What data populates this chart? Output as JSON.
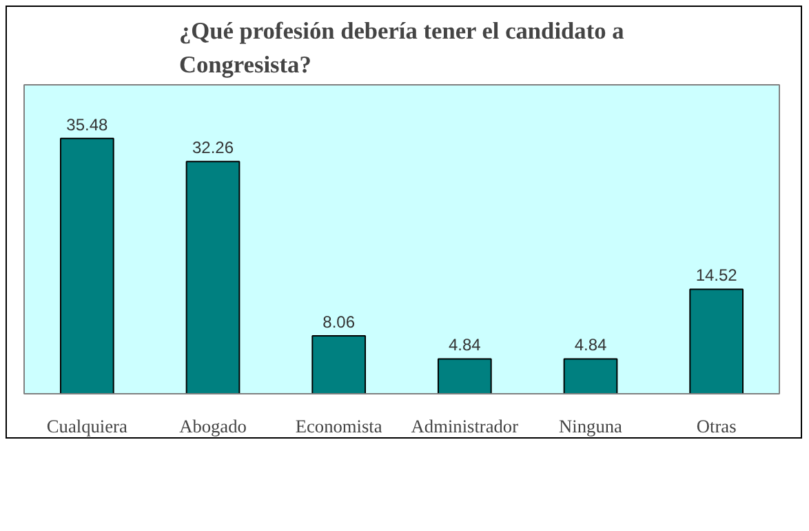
{
  "chart_data": {
    "type": "bar",
    "title": "¿Qué profesión debería tener el candidato a Congresista?",
    "categories": [
      "Cualquiera",
      "Abogado",
      "Economista",
      "Administrador",
      "Ninguna",
      "Otras"
    ],
    "values": [
      35.48,
      32.26,
      8.06,
      4.84,
      4.84,
      14.52
    ],
    "color": "#008080",
    "data_labels": true,
    "grid": false
  }
}
